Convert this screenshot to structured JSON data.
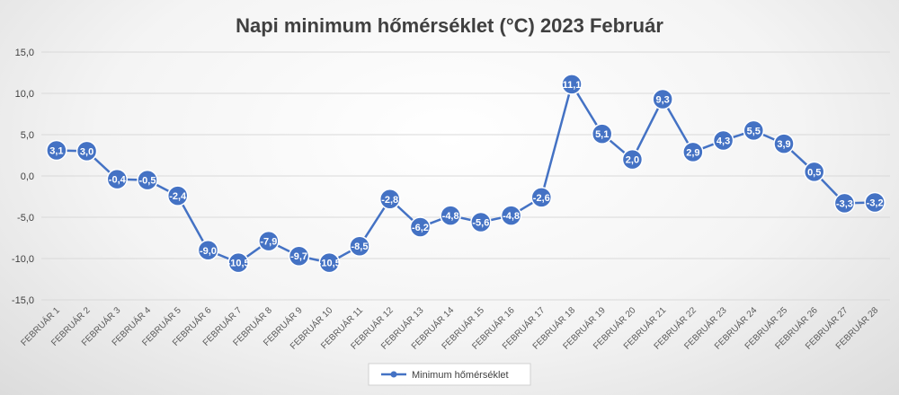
{
  "chart_data": {
    "type": "line",
    "title": "Napi minimum hőmérséklet (°C) 2023 Február",
    "xlabel": "",
    "ylabel": "",
    "ylim": [
      -15,
      15
    ],
    "yticks": [
      "15,0",
      "10,0",
      "5,0",
      "0,0",
      "-5,0",
      "-10,0",
      "-15,0"
    ],
    "ytick_values": [
      15,
      10,
      5,
      0,
      -5,
      -10,
      -15
    ],
    "grid": true,
    "legend_position": "bottom",
    "categories": [
      "FEBRUÁR 1",
      "FEBRUÁR 2",
      "FEBRUÁR 3",
      "FEBRUÁR 4",
      "FEBRUÁR 5",
      "FEBRUÁR 6",
      "FEBRUÁR 7",
      "FEBRUÁR 8",
      "FEBRUÁR 9",
      "FEBRUÁR 10",
      "FEBRUÁR 11",
      "FEBRUÁR 12",
      "FEBRUÁR 13",
      "FEBRUÁR 14",
      "FEBRUÁR 15",
      "FEBRUÁR 16",
      "FEBRUÁR 17",
      "FEBRUÁR 18",
      "FEBRUÁR 19",
      "FEBRUÁR 20",
      "FEBRUÁR 21",
      "FEBRUÁR 22",
      "FEBRUÁR 23",
      "FEBRUÁR 24",
      "FEBRUÁR 25",
      "FEBRUÁR 26",
      "FEBRUÁR 27",
      "FEBRUÁR 28"
    ],
    "series": [
      {
        "name": "Minimum hőmérséklet",
        "color": "#4472c4",
        "values": [
          3.1,
          3.0,
          -0.4,
          -0.5,
          -2.4,
          -9.0,
          -10.5,
          -7.9,
          -9.7,
          -10.5,
          -8.5,
          -2.8,
          -6.2,
          -4.8,
          -5.6,
          -4.8,
          -2.6,
          11.1,
          5.1,
          2.0,
          9.3,
          2.9,
          4.3,
          5.5,
          3.9,
          0.5,
          -3.3,
          -3.2
        ],
        "labels": [
          "3,1",
          "3,0",
          "-0,4",
          "-0,5",
          "-2,4",
          "-9,0",
          "-10,5",
          "-7,9",
          "-9,7",
          "-10,5",
          "-8,5",
          "-2,8",
          "-6,2",
          "-4,8",
          "-5,6",
          "-4,8",
          "-2,6",
          "11,1",
          "5,1",
          "2,0",
          "9,3",
          "2,9",
          "4,3",
          "5,5",
          "3,9",
          "0,5",
          "-3,3",
          "-3,2"
        ]
      }
    ]
  }
}
